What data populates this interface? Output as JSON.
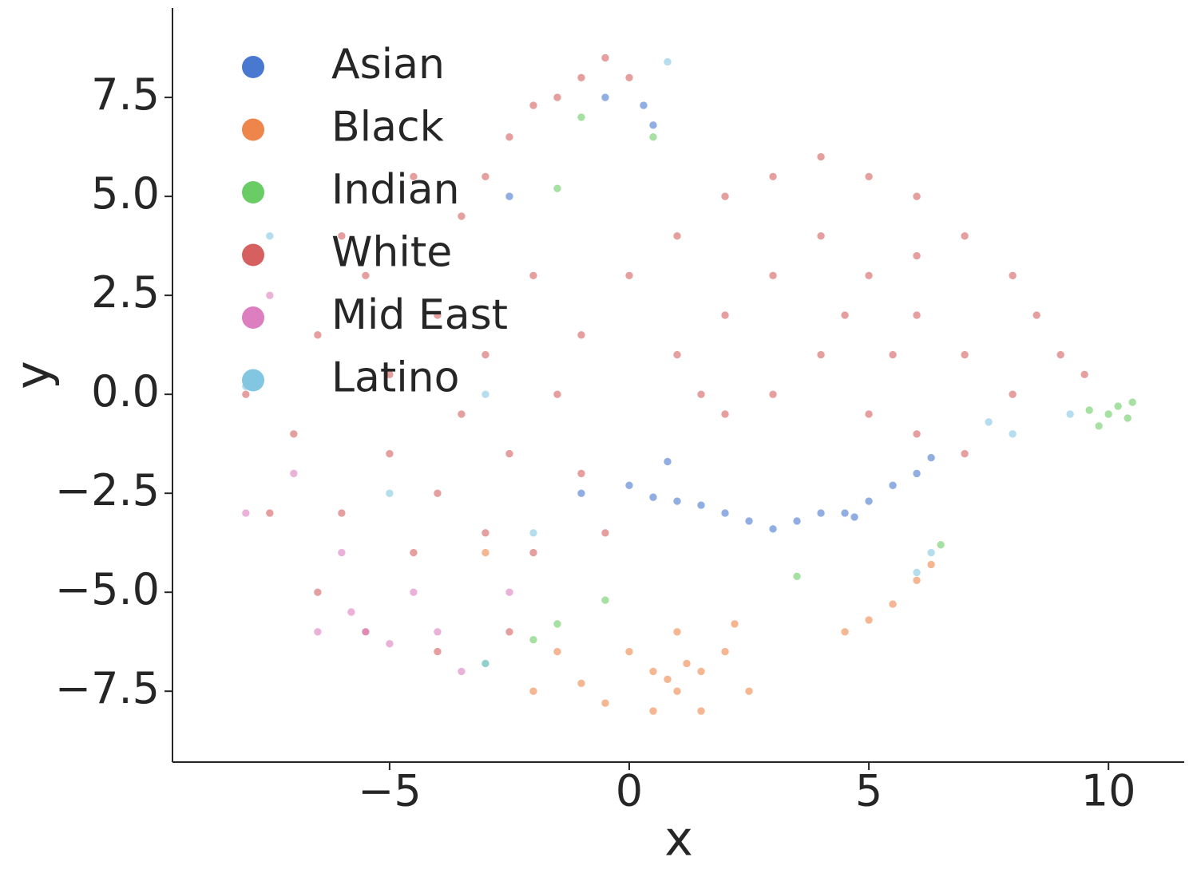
{
  "chart_data": {
    "type": "scatter",
    "xlabel": "x",
    "ylabel": "y",
    "xlim": [
      -9.53,
      11.58
    ],
    "ylim": [
      -9.29,
      9.76
    ],
    "xticks": [
      {
        "value": -5,
        "label": "−5"
      },
      0,
      5,
      10
    ],
    "yticks": [
      {
        "value": -7.5,
        "label": "−7.5"
      },
      {
        "value": -5,
        "label": "−5.0"
      },
      {
        "value": -2.5,
        "label": "−2.5"
      },
      {
        "value": 0,
        "label": "0.0"
      },
      {
        "value": 2.5,
        "label": "2.5"
      },
      {
        "value": 5,
        "label": "5.0"
      },
      {
        "value": 7.5,
        "label": "7.5"
      }
    ],
    "legend": "upper left",
    "series": [
      {
        "name": "Asian",
        "color": "#4878d0",
        "x": [
          0,
          0.5,
          1,
          1.5,
          2,
          2.5,
          3,
          3.5,
          4,
          4.5,
          5,
          5.5,
          6,
          6.3,
          0.8,
          -0.5,
          0.3,
          0.5,
          -2.5,
          -1,
          4.7
        ],
        "values": [
          -2.3,
          -2.6,
          -2.7,
          -2.8,
          -3,
          -3.2,
          -3.4,
          -3.2,
          -3,
          -3,
          -2.7,
          -2.3,
          -2,
          -1.6,
          -1.7,
          7.5,
          7.3,
          6.8,
          5,
          -2.5,
          -3.1
        ]
      },
      {
        "name": "Black",
        "color": "#ee854a",
        "x": [
          0,
          0.5,
          1,
          1.5,
          2,
          1,
          1.5,
          0.5,
          2.5,
          -0.5,
          -1,
          -2,
          -1.5,
          2.2,
          4.5,
          5,
          5.5,
          6,
          6.3,
          1.2,
          0.8,
          -3
        ],
        "values": [
          -6.5,
          -7,
          -7.5,
          -7,
          -6.5,
          -6,
          -8,
          -8,
          -7.5,
          -7.8,
          -7.3,
          -7.5,
          -6.5,
          -5.8,
          -6,
          -5.7,
          -5.3,
          -4.7,
          -4.3,
          -6.8,
          -7.2,
          -4
        ]
      },
      {
        "name": "Indian",
        "color": "#6acc64",
        "x": [
          10,
          10.2,
          10.4,
          9.8,
          10.5,
          9.6,
          -3,
          -2,
          -1.5,
          -0.5,
          -1,
          0.5,
          -1.5,
          6.5,
          3.5
        ],
        "values": [
          -0.5,
          -0.3,
          -0.6,
          -0.8,
          -0.2,
          -0.4,
          -6.8,
          -6.2,
          -5.8,
          -5.2,
          7,
          6.5,
          5.2,
          -3.8,
          -4.6
        ]
      },
      {
        "name": "White",
        "color": "#d65f5f",
        "x": [
          -7,
          -6.5,
          -6,
          -5.5,
          -5,
          -5,
          -4.5,
          -4,
          -4,
          -3.5,
          -3.5,
          -3,
          -3,
          -2.5,
          -2,
          -2,
          -1.5,
          -1,
          -1,
          -0.5,
          -7.5,
          -6.5,
          -5.5,
          -4,
          -2.5,
          -8,
          -6,
          -4.5,
          -2.5,
          -1.5,
          -1,
          -0.5,
          0,
          -2,
          -3,
          0,
          1,
          2,
          3,
          4,
          5,
          6,
          7,
          8,
          8.5,
          9,
          9.5,
          1,
          2,
          3,
          4,
          5,
          6,
          7,
          8,
          3,
          4,
          5,
          6,
          7,
          2,
          4.5,
          6,
          1.5,
          5.5
        ],
        "values": [
          -1,
          1.5,
          -3,
          3,
          -1.5,
          0.5,
          -4,
          2,
          -2.5,
          4.5,
          -0.5,
          -3.5,
          1,
          -1.5,
          3,
          -4,
          0,
          -2,
          1.5,
          -3.5,
          -3,
          -5,
          -6,
          -6.5,
          -6,
          0,
          4,
          5.5,
          6.5,
          7.5,
          8,
          8.5,
          8,
          7.3,
          5.5,
          3,
          4,
          5,
          5.5,
          6,
          5.5,
          5,
          4,
          3,
          2,
          1,
          0.5,
          1,
          2,
          3,
          4,
          3,
          2,
          1,
          0,
          0,
          1,
          -0.5,
          -1,
          -1.5,
          -0.5,
          2,
          3.5,
          0,
          1
        ]
      },
      {
        "name": "Mid East",
        "color": "#dc7ec0",
        "x": [
          -5.5,
          -5,
          -5.8,
          -4.5,
          -6,
          -7,
          -8,
          -7.5,
          -3.5,
          -4,
          -6.5,
          -2.5
        ],
        "values": [
          -6,
          -6.3,
          -5.5,
          -5,
          -4,
          -2,
          -3,
          2.5,
          -7,
          -6,
          -6,
          -5
        ]
      },
      {
        "name": "Latino",
        "color": "#82c6e2",
        "x": [
          6,
          6.3,
          9.2,
          8,
          -3,
          -7.5,
          -3,
          -2,
          0.8,
          7.5,
          -8,
          -5
        ],
        "values": [
          -4.5,
          -4,
          -0.5,
          -1,
          -6.8,
          4,
          0,
          -3.5,
          8.4,
          -0.7,
          0.2,
          -2.5
        ]
      }
    ]
  }
}
